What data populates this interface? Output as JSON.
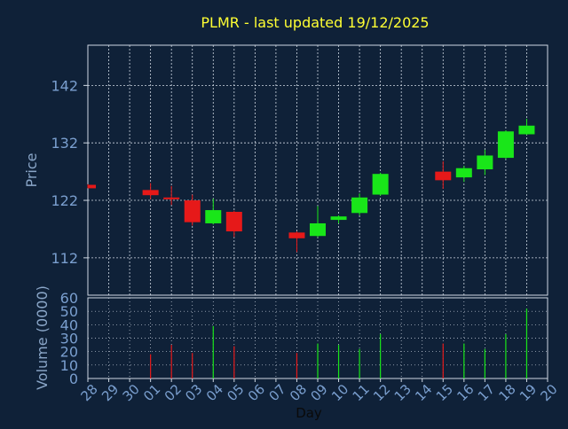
{
  "chart_data": [
    {
      "type": "candlestick",
      "title": "PLMR - last updated 19/12/2025",
      "ylabel": "Price",
      "ylim": [
        105.5,
        149
      ],
      "yticks": [
        112,
        122,
        132,
        142
      ],
      "categories": [
        "28",
        "29",
        "30",
        "01",
        "02",
        "03",
        "04",
        "05",
        "06",
        "07",
        "08",
        "09",
        "10",
        "11",
        "12",
        "13",
        "14",
        "15",
        "16",
        "17",
        "18",
        "19",
        "20"
      ],
      "candles": [
        {
          "day": "28",
          "open": 124.7,
          "high": 124.8,
          "low": 124.1,
          "close": 124.1
        },
        {
          "day": "01",
          "open": 123.8,
          "high": 125.0,
          "low": 122.2,
          "close": 122.9
        },
        {
          "day": "02",
          "open": 122.5,
          "high": 124.5,
          "low": 121.2,
          "close": 122.3
        },
        {
          "day": "03",
          "open": 122.0,
          "high": 123.0,
          "low": 117.6,
          "close": 118.2
        },
        {
          "day": "04",
          "open": 118.0,
          "high": 122.3,
          "low": 117.8,
          "close": 120.3
        },
        {
          "day": "05",
          "open": 120.0,
          "high": 120.2,
          "low": 115.6,
          "close": 116.6
        },
        {
          "day": "08",
          "open": 116.4,
          "high": 116.6,
          "low": 113.0,
          "close": 115.4
        },
        {
          "day": "09",
          "open": 115.8,
          "high": 121.0,
          "low": 115.6,
          "close": 118.0
        },
        {
          "day": "10",
          "open": 118.6,
          "high": 119.4,
          "low": 118.0,
          "close": 119.2
        },
        {
          "day": "11",
          "open": 119.8,
          "high": 123.2,
          "low": 119.4,
          "close": 122.5
        },
        {
          "day": "12",
          "open": 123.0,
          "high": 126.8,
          "low": 122.8,
          "close": 126.6
        },
        {
          "day": "15",
          "open": 127.0,
          "high": 128.8,
          "low": 124.0,
          "close": 125.5
        },
        {
          "day": "16",
          "open": 126.0,
          "high": 128.0,
          "low": 125.2,
          "close": 127.6
        },
        {
          "day": "17",
          "open": 127.4,
          "high": 130.8,
          "low": 126.4,
          "close": 129.8
        },
        {
          "day": "18",
          "open": 129.4,
          "high": 134.2,
          "low": 129.2,
          "close": 134.0
        },
        {
          "day": "19",
          "open": 133.5,
          "high": 136.2,
          "low": 133.4,
          "close": 135.0
        }
      ]
    },
    {
      "type": "bar",
      "ylabel": "Volume (0000)",
      "xlabel": "Day",
      "ylim": [
        0,
        60
      ],
      "yticks": [
        0,
        10,
        20,
        30,
        40,
        50,
        60
      ],
      "categories": [
        "28",
        "29",
        "30",
        "01",
        "02",
        "03",
        "04",
        "05",
        "06",
        "07",
        "08",
        "09",
        "10",
        "11",
        "12",
        "13",
        "14",
        "15",
        "16",
        "17",
        "18",
        "19",
        "20"
      ],
      "bars": [
        {
          "day": "01",
          "value": 18,
          "direction": "down"
        },
        {
          "day": "02",
          "value": 25,
          "direction": "down"
        },
        {
          "day": "03",
          "value": 19,
          "direction": "down"
        },
        {
          "day": "04",
          "value": 39,
          "direction": "up"
        },
        {
          "day": "05",
          "value": 24,
          "direction": "down"
        },
        {
          "day": "08",
          "value": 19,
          "direction": "down"
        },
        {
          "day": "09",
          "value": 26,
          "direction": "up"
        },
        {
          "day": "10",
          "value": 25,
          "direction": "up"
        },
        {
          "day": "11",
          "value": 22,
          "direction": "up"
        },
        {
          "day": "12",
          "value": 33,
          "direction": "up"
        },
        {
          "day": "15",
          "value": 26,
          "direction": "down"
        },
        {
          "day": "16",
          "value": 26,
          "direction": "up"
        },
        {
          "day": "17",
          "value": 22,
          "direction": "up"
        },
        {
          "day": "18",
          "value": 33,
          "direction": "up"
        },
        {
          "day": "19",
          "value": 52,
          "direction": "up"
        }
      ]
    }
  ],
  "colors": {
    "background": "#0f2138",
    "title": "#ffff33",
    "axis_text": "#7a9fcf",
    "axis_label": "#8aa6c8",
    "grid": "#cfd8e3",
    "up": "#19e619",
    "down": "#e61919"
  }
}
